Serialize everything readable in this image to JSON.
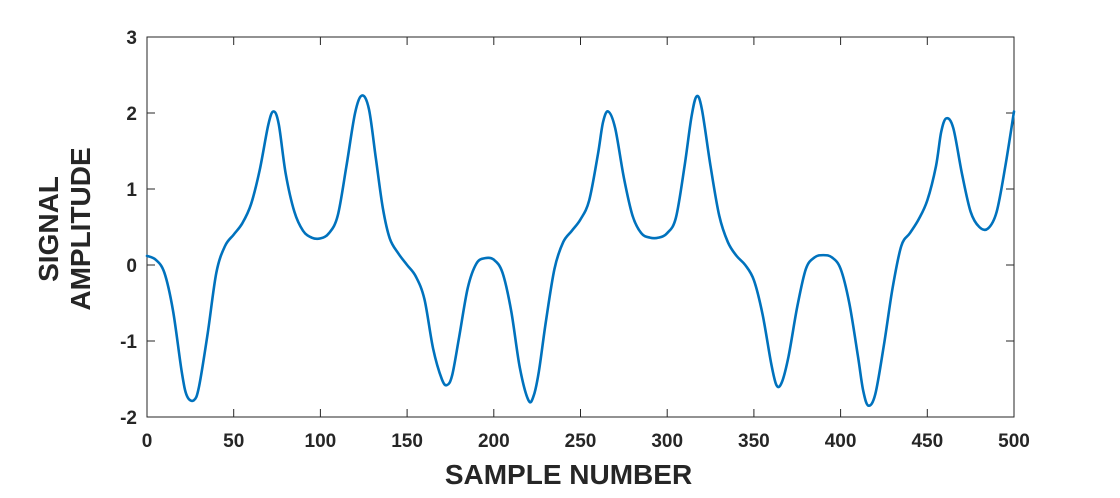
{
  "chart_data": {
    "type": "line",
    "title": "",
    "xlabel": "SAMPLE  NUMBER",
    "ylabel": [
      "SIGNAL",
      "AMPLITUDE"
    ],
    "xlim": [
      0,
      500
    ],
    "ylim": [
      -2,
      3
    ],
    "xticks": [
      "0",
      "50",
      "100",
      "150",
      "200",
      "250",
      "300",
      "350",
      "400",
      "450",
      "500"
    ],
    "yticks": [
      "3",
      "2",
      "1",
      "0",
      "-1",
      "-2"
    ],
    "grid": false,
    "legend": "none",
    "line_color": "#0072BD",
    "series": [
      {
        "x": [
          0,
          5,
          10,
          15,
          20,
          23,
          27,
          30,
          35,
          40,
          45,
          50,
          55,
          60,
          65,
          70,
          73,
          76,
          80,
          85,
          90,
          95,
          100,
          105,
          110,
          115,
          120,
          124,
          128,
          132,
          136,
          140,
          145,
          150,
          155,
          160,
          165,
          170,
          173,
          176,
          180,
          185,
          190,
          195,
          200,
          205,
          210,
          215,
          220,
          223,
          226,
          230,
          235,
          240,
          245,
          250,
          255,
          260,
          263,
          266,
          270,
          275,
          280,
          285,
          290,
          295,
          300,
          305,
          310,
          314,
          317,
          320,
          325,
          330,
          335,
          340,
          345,
          350,
          355,
          360,
          363,
          366,
          370,
          375,
          380,
          385,
          390,
          395,
          400,
          405,
          410,
          413,
          416,
          420,
          425,
          430,
          435,
          440,
          445,
          450,
          455,
          458,
          461,
          465,
          470,
          475,
          480,
          485,
          490,
          495,
          500
        ],
        "values": [
          0.12,
          0.07,
          -0.1,
          -0.6,
          -1.4,
          -1.72,
          -1.78,
          -1.6,
          -0.9,
          -0.1,
          0.25,
          0.4,
          0.55,
          0.8,
          1.25,
          1.85,
          2.02,
          1.85,
          1.2,
          0.7,
          0.45,
          0.36,
          0.35,
          0.42,
          0.65,
          1.3,
          2.0,
          2.23,
          2.05,
          1.4,
          0.75,
          0.35,
          0.15,
          0.0,
          -0.15,
          -0.45,
          -1.1,
          -1.5,
          -1.58,
          -1.45,
          -0.95,
          -0.3,
          0.02,
          0.09,
          0.07,
          -0.1,
          -0.6,
          -1.35,
          -1.78,
          -1.72,
          -1.4,
          -0.75,
          -0.05,
          0.3,
          0.45,
          0.6,
          0.85,
          1.45,
          1.88,
          2.02,
          1.8,
          1.15,
          0.65,
          0.42,
          0.36,
          0.36,
          0.42,
          0.62,
          1.3,
          1.95,
          2.22,
          2.05,
          1.3,
          0.65,
          0.3,
          0.12,
          0.0,
          -0.2,
          -0.65,
          -1.3,
          -1.58,
          -1.55,
          -1.2,
          -0.55,
          -0.05,
          0.1,
          0.13,
          0.1,
          -0.05,
          -0.5,
          -1.2,
          -1.65,
          -1.85,
          -1.7,
          -1.05,
          -0.3,
          0.25,
          0.42,
          0.6,
          0.85,
          1.3,
          1.75,
          1.93,
          1.8,
          1.2,
          0.7,
          0.5,
          0.48,
          0.7,
          1.3,
          2.02
        ]
      }
    ]
  }
}
